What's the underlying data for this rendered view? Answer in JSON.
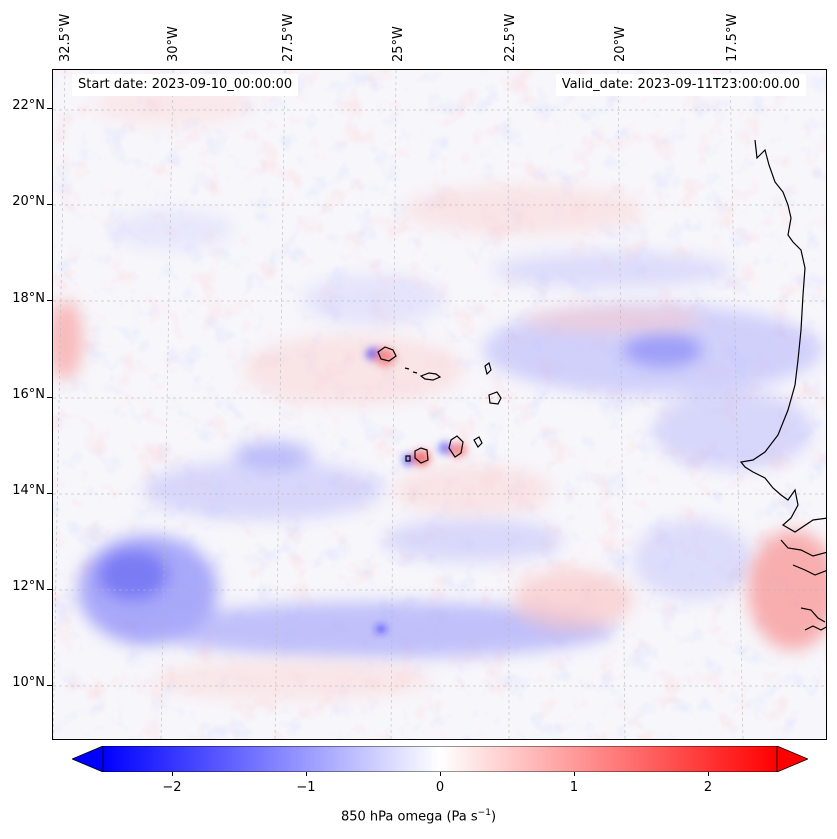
{
  "map": {
    "start_date": "Start date: 2023-09-10_00:00:00",
    "valid_date": "Valid_date: 2023-09-11T23:00:00.00",
    "lon_labels": [
      "32.5°W",
      "30°W",
      "27.5°W",
      "25°W",
      "22.5°W",
      "20°W",
      "17.5°W"
    ],
    "lat_labels": [
      "22°N",
      "20°N",
      "18°N",
      "16°N",
      "14°N",
      "12°N",
      "10°N"
    ],
    "gridlines": true,
    "colormap": "bwr",
    "colors": {
      "negative": "#0000ff",
      "neutral": "#ffffff",
      "positive": "#ff0000",
      "coastline": "#000000"
    }
  },
  "colorbar": {
    "label_prefix": "850 hPa omega (Pa s",
    "label_exp": "−1",
    "label_suffix": ")",
    "ticks": [
      "−2",
      "−1",
      "0",
      "1",
      "2"
    ],
    "range": [
      -2.5,
      2.5
    ],
    "extend": "both"
  }
}
